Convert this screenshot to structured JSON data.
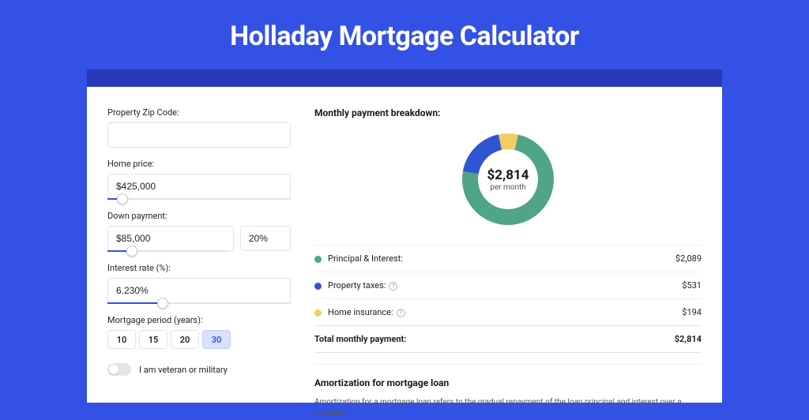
{
  "page": {
    "title": "Holladay Mortgage Calculator"
  },
  "form": {
    "zip_label": "Property Zip Code:",
    "zip_value": "",
    "price_label": "Home price:",
    "price_value": "$425,000",
    "price_slider_pct": 8,
    "down_label": "Down payment:",
    "down_value": "$85,000",
    "down_pct_value": "20%",
    "down_slider_pct": 20,
    "rate_label": "Interest rate (%):",
    "rate_value": "6.230%",
    "rate_slider_pct": 30,
    "period_label": "Mortgage period (years):",
    "periods": [
      "10",
      "15",
      "20",
      "30"
    ],
    "period_active_index": 3,
    "veteran_label": "I am veteran or military"
  },
  "breakdown": {
    "title": "Monthly payment breakdown:",
    "donut": {
      "amount": "$2,814",
      "sub": "per month",
      "slices": [
        {
          "label": "Principal & Interest:",
          "value": "$2,089",
          "color": "#4fa586",
          "pct": 74.2
        },
        {
          "label": "Property taxes:",
          "value": "$531",
          "color": "#2f55d4",
          "pct": 18.9,
          "info": true
        },
        {
          "label": "Home insurance:",
          "value": "$194",
          "color": "#f0cd61",
          "pct": 6.9,
          "info": true
        }
      ]
    },
    "total_label": "Total monthly payment:",
    "total_value": "$2,814"
  },
  "amort": {
    "title": "Amortization for mortgage loan",
    "text": "Amortization for a mortgage loan refers to the gradual repayment of the loan principal and interest over a specified"
  },
  "colors": {
    "page_bg": "#3451e6",
    "dark_bar": "#2739b8",
    "slice_pi": "#4fa586",
    "slice_tax": "#2f55d4",
    "slice_ins": "#f0cd61"
  }
}
